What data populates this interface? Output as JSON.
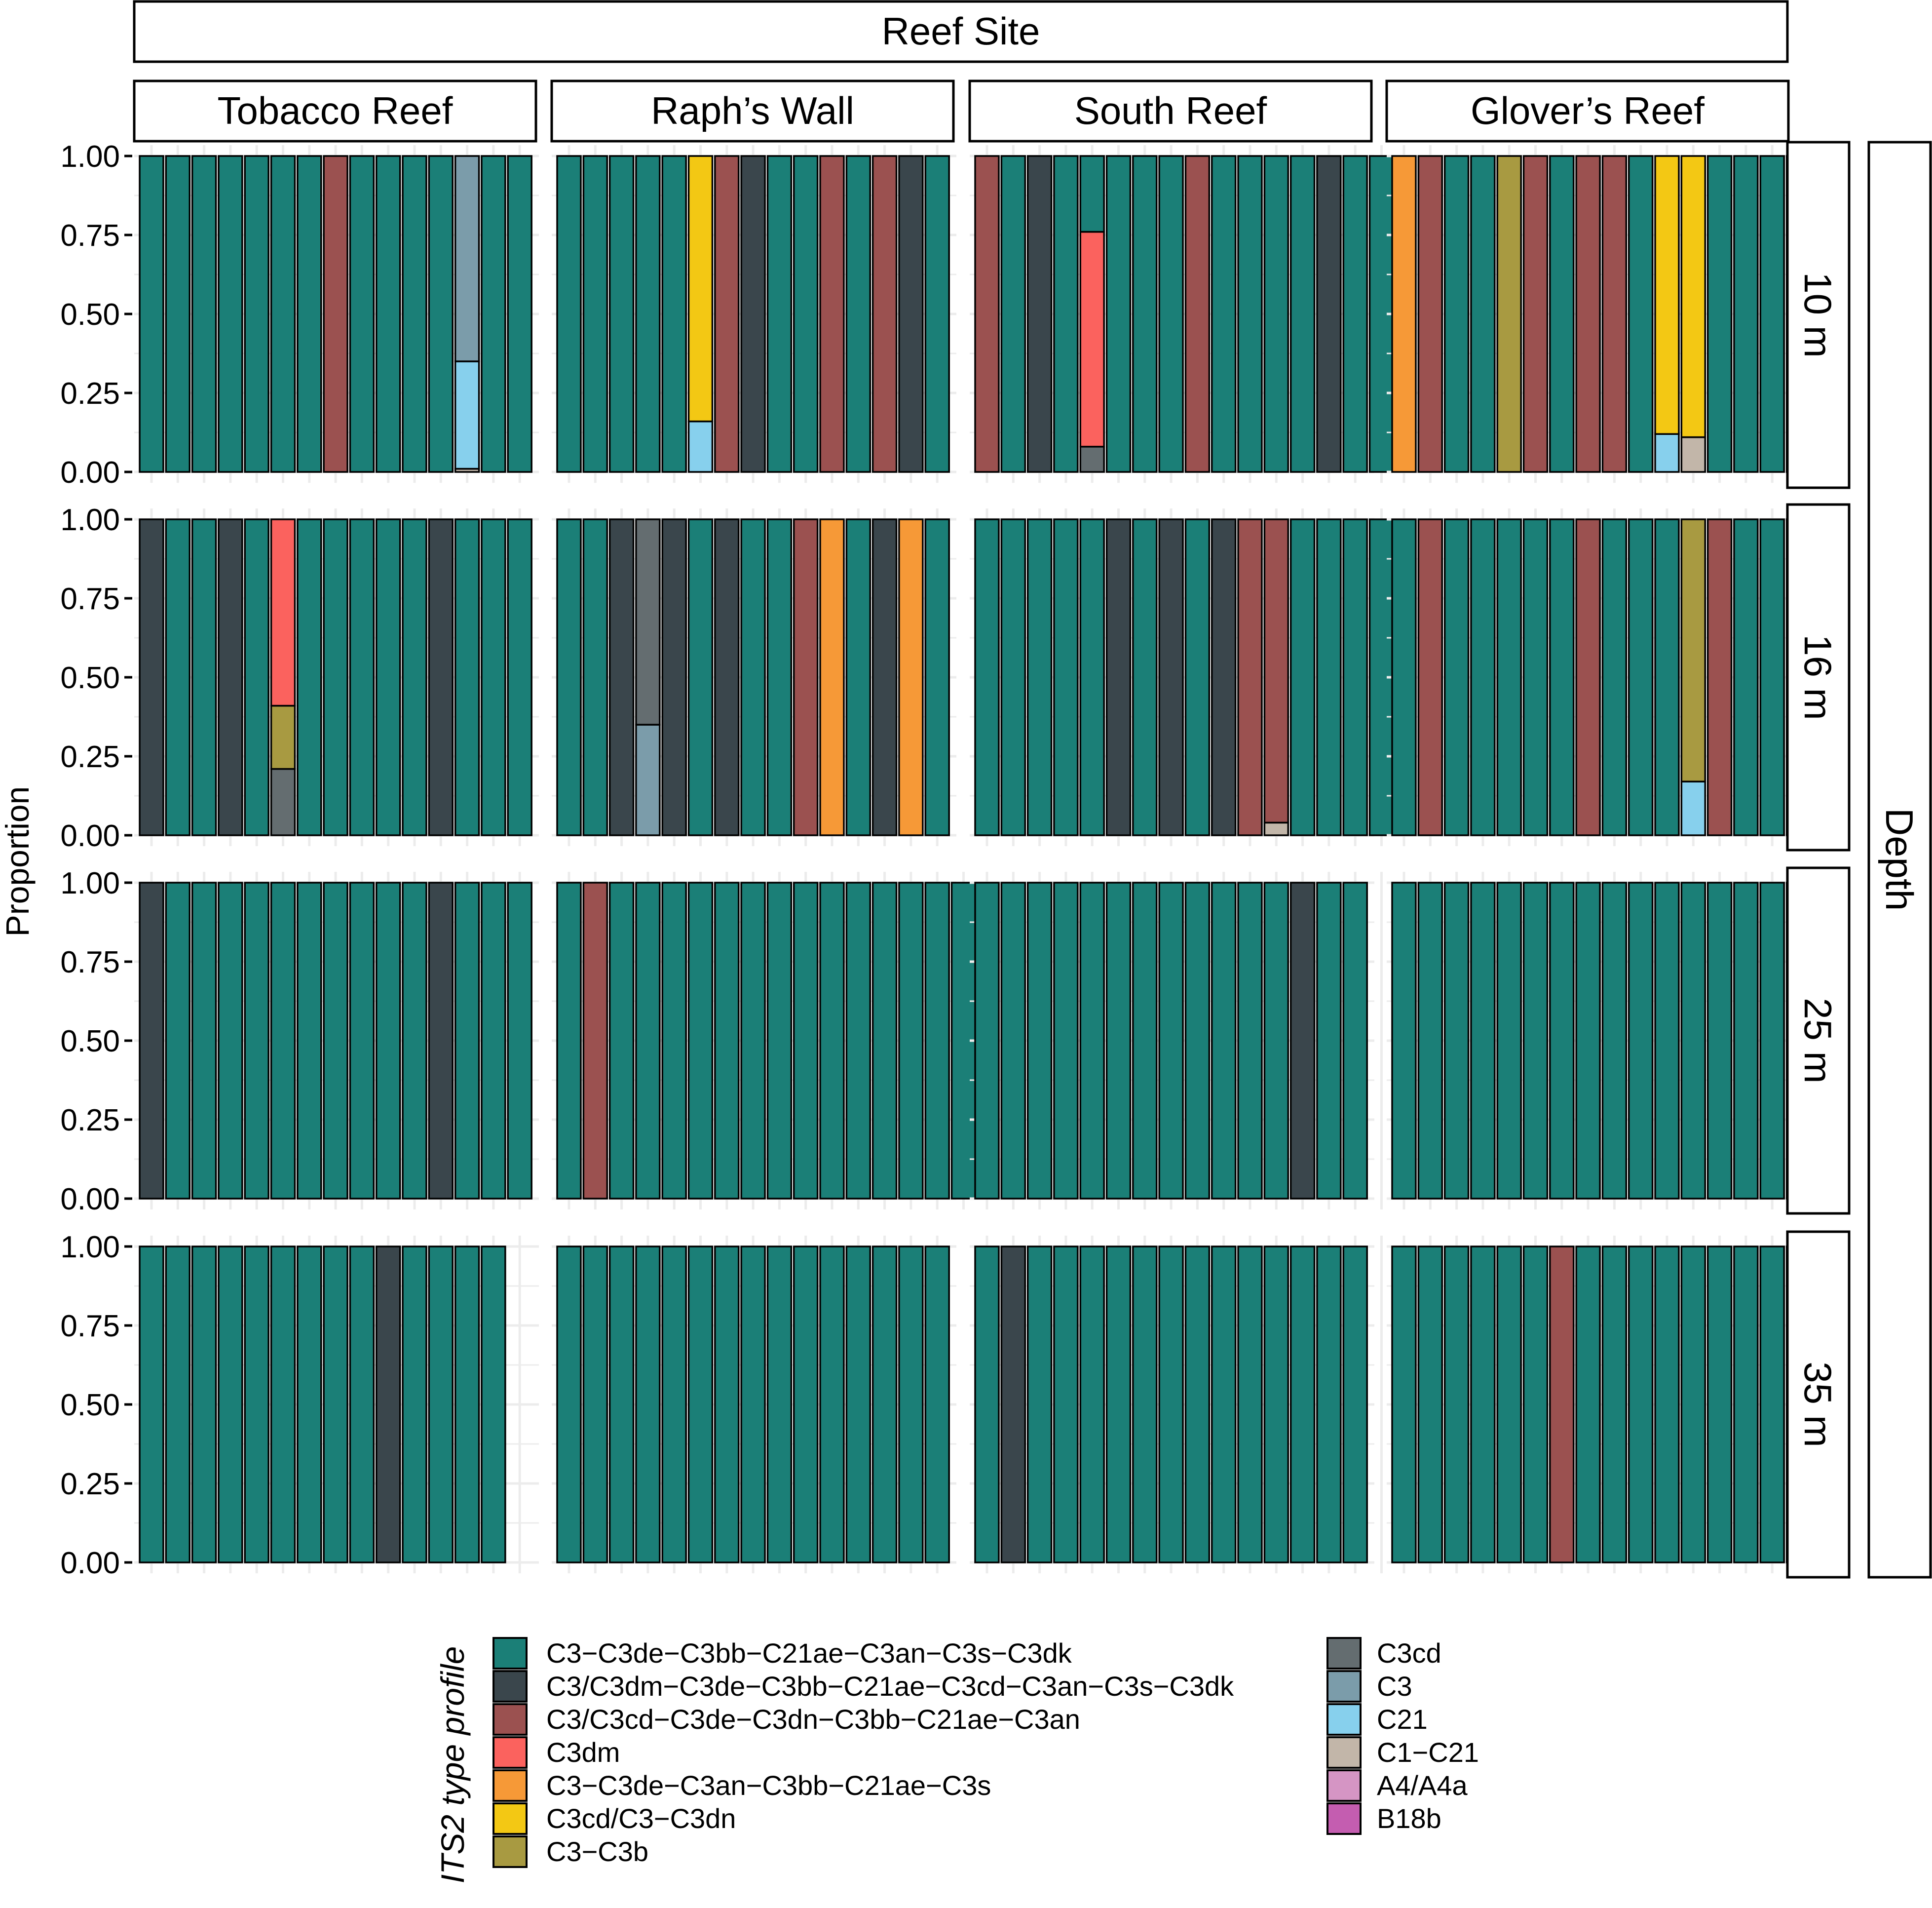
{
  "colors": {
    "p1": "#1b7f77",
    "p2": "#3a464c",
    "p3": "#9b5150",
    "p4": "#fb625e",
    "p5": "#f69937",
    "p6": "#f3c814",
    "p7": "#a89a41",
    "p8": "#646d70",
    "p9": "#7b9caa",
    "p10": "#87d0ed",
    "p11": "#c2b6a9",
    "p12": "#d595c4",
    "p13": "#c45db0",
    "grid": "#ececec",
    "bar_outline": "#000000"
  },
  "chart_data": {
    "type": "bar",
    "stacked": true,
    "y_title": "Proportion",
    "y_ticks": [
      "1.00",
      "0.75",
      "0.50",
      "0.25",
      "0.00"
    ],
    "ylim": [
      0,
      1
    ],
    "column_strip_title": "Reef Site",
    "row_strip_title": "Depth",
    "columns": [
      "Tobacco Reef",
      "Raph’s Wall",
      "South Reef",
      "Glover’s Reef"
    ],
    "rows": [
      "10 m",
      "16 m",
      "25 m",
      "35 m"
    ],
    "legend": {
      "title": "ITS2 type profile",
      "position": "bottom",
      "items": [
        {
          "key": "p1",
          "label": "C3−C3de−C3bb−C21ae−C3an−C3s−C3dk"
        },
        {
          "key": "p2",
          "label": "C3/C3dm−C3de−C3bb−C21ae−C3cd−C3an−C3s−C3dk"
        },
        {
          "key": "p3",
          "label": "C3/C3cd−C3de−C3dn−C3bb−C21ae−C3an"
        },
        {
          "key": "p4",
          "label": "C3dm"
        },
        {
          "key": "p5",
          "label": "C3−C3de−C3an−C3bb−C21ae−C3s"
        },
        {
          "key": "p6",
          "label": "C3cd/C3−C3dn"
        },
        {
          "key": "p7",
          "label": "C3−C3b"
        },
        {
          "key": "p8",
          "label": "C3cd"
        },
        {
          "key": "p9",
          "label": "C3"
        },
        {
          "key": "p10",
          "label": "C21"
        },
        {
          "key": "p11",
          "label": "C1−C21"
        },
        {
          "key": "p12",
          "label": "A4/A4a"
        },
        {
          "key": "p13",
          "label": "B18b"
        }
      ]
    },
    "panels": [
      [
        {
          "slots": 15,
          "samples": [
            [
              "p1"
            ],
            [
              "p1"
            ],
            [
              "p1"
            ],
            [
              "p1"
            ],
            [
              "p1"
            ],
            [
              "p1"
            ],
            [
              "p1"
            ],
            [
              "p3"
            ],
            [
              "p1"
            ],
            [
              "p1"
            ],
            [
              "p1"
            ],
            [
              "p1"
            ],
            [
              [
                "p11",
                0.01
              ],
              [
                "p10",
                0.34
              ],
              [
                "p9",
                0.65
              ]
            ],
            [
              "p1"
            ],
            [
              "p1"
            ]
          ]
        },
        {
          "slots": 15,
          "samples": [
            [
              "p1"
            ],
            [
              "p1"
            ],
            [
              "p1"
            ],
            [
              "p1"
            ],
            [
              "p1"
            ],
            [
              [
                "p10",
                0.16
              ],
              [
                "p6",
                0.84
              ]
            ],
            [
              "p3"
            ],
            [
              "p2"
            ],
            [
              "p1"
            ],
            [
              "p1"
            ],
            [
              "p3"
            ],
            [
              "p1"
            ],
            [
              "p3"
            ],
            [
              "p2"
            ],
            [
              "p1"
            ]
          ]
        },
        {
          "slots": 16,
          "samples": [
            [
              "p3"
            ],
            [
              "p1"
            ],
            [
              "p2"
            ],
            [
              "p1"
            ],
            [
              [
                "p8",
                0.08
              ],
              [
                "p4",
                0.68
              ],
              [
                "p1",
                0.24
              ]
            ],
            [
              "p1"
            ],
            [
              "p1"
            ],
            [
              "p1"
            ],
            [
              "p3"
            ],
            [
              "p1"
            ],
            [
              "p1"
            ],
            [
              "p1"
            ],
            [
              "p1"
            ],
            [
              "p2"
            ],
            [
              "p1"
            ],
            [
              "p1"
            ]
          ]
        },
        {
          "slots": 16,
          "samples": [
            [
              "p5"
            ],
            [
              "p3"
            ],
            [
              "p1"
            ],
            [
              "p1"
            ],
            [
              "p7"
            ],
            [
              "p3"
            ],
            [
              "p1"
            ],
            [
              "p3"
            ],
            [
              "p3"
            ],
            [
              "p1"
            ],
            [
              [
                "p10",
                0.12
              ],
              [
                "p6",
                0.88
              ]
            ],
            [
              [
                "p11",
                0.11
              ],
              [
                "p6",
                0.89
              ]
            ],
            [
              "p1"
            ],
            [
              "p1"
            ],
            [
              "p1"
            ],
            [
              "p1"
            ]
          ]
        }
      ],
      [
        {
          "slots": 15,
          "samples": [
            [
              "p2"
            ],
            [
              "p1"
            ],
            [
              "p1"
            ],
            [
              "p2"
            ],
            [
              "p1"
            ],
            [
              [
                "p8",
                0.21
              ],
              [
                "p7",
                0.2
              ],
              [
                "p4",
                0.59
              ]
            ],
            [
              "p1"
            ],
            [
              "p1"
            ],
            [
              "p1"
            ],
            [
              "p1"
            ],
            [
              "p1"
            ],
            [
              "p2"
            ],
            [
              "p1"
            ],
            [
              "p1"
            ],
            [
              "p1"
            ]
          ]
        },
        {
          "slots": 15,
          "samples": [
            [
              "p1"
            ],
            [
              "p1"
            ],
            [
              "p2"
            ],
            [
              [
                "p9",
                0.35
              ],
              [
                "p8",
                0.65
              ]
            ],
            [
              "p2"
            ],
            [
              "p1"
            ],
            [
              "p2"
            ],
            [
              "p1"
            ],
            [
              "p1"
            ],
            [
              "p3"
            ],
            [
              "p5"
            ],
            [
              "p1"
            ],
            [
              "p2"
            ],
            [
              "p5"
            ],
            [
              "p1"
            ]
          ]
        },
        {
          "slots": 16,
          "samples": [
            [
              "p1"
            ],
            [
              "p1"
            ],
            [
              "p1"
            ],
            [
              "p1"
            ],
            [
              "p1"
            ],
            [
              "p2"
            ],
            [
              "p1"
            ],
            [
              "p2"
            ],
            [
              "p1"
            ],
            [
              "p2"
            ],
            [
              "p3"
            ],
            [
              [
                "p11",
                0.04
              ],
              [
                "p3",
                0.96
              ]
            ],
            [
              "p1"
            ],
            [
              "p1"
            ],
            [
              "p1"
            ],
            [
              "p1"
            ]
          ]
        },
        {
          "slots": 16,
          "samples": [
            [
              "p1"
            ],
            [
              "p3"
            ],
            [
              "p1"
            ],
            [
              "p1"
            ],
            [
              "p1"
            ],
            [
              "p1"
            ],
            [
              "p1"
            ],
            [
              "p3"
            ],
            [
              "p1"
            ],
            [
              "p1"
            ],
            [
              "p1"
            ],
            [
              [
                "p10",
                0.17
              ],
              [
                "p7",
                0.83
              ]
            ],
            [
              "p3"
            ],
            [
              "p1"
            ],
            [
              "p1"
            ],
            [
              "p1"
            ]
          ]
        }
      ],
      [
        {
          "slots": 15,
          "samples": [
            [
              "p2"
            ],
            [
              "p1"
            ],
            [
              "p1"
            ],
            [
              "p1"
            ],
            [
              "p1"
            ],
            [
              "p1"
            ],
            [
              "p1"
            ],
            [
              "p1"
            ],
            [
              "p1"
            ],
            [
              "p1"
            ],
            [
              "p1"
            ],
            [
              "p2"
            ],
            [
              "p1"
            ],
            [
              "p1"
            ],
            [
              "p1"
            ]
          ]
        },
        {
          "slots": 16,
          "samples": [
            [
              "p1"
            ],
            [
              "p3"
            ],
            [
              "p1"
            ],
            [
              "p1"
            ],
            [
              "p1"
            ],
            [
              "p1"
            ],
            [
              "p1"
            ],
            [
              "p1"
            ],
            [
              "p1"
            ],
            [
              "p1"
            ],
            [
              "p1"
            ],
            [
              "p1"
            ],
            [
              "p1"
            ],
            [
              "p1"
            ],
            [
              "p1"
            ],
            [
              "p1"
            ]
          ]
        },
        {
          "slots": 16,
          "samples": [
            [
              "p1"
            ],
            [
              "p1"
            ],
            [
              "p1"
            ],
            [
              "p1"
            ],
            [
              "p1"
            ],
            [
              "p1"
            ],
            [
              "p1"
            ],
            [
              "p1"
            ],
            [
              "p1"
            ],
            [
              "p1"
            ],
            [
              "p1"
            ],
            [
              "p1"
            ],
            [
              "p2"
            ],
            [
              "p1"
            ],
            [
              "p1"
            ]
          ]
        },
        {
          "slots": 16,
          "samples": [
            [
              "p1"
            ],
            [
              "p1"
            ],
            [
              "p1"
            ],
            [
              "p1"
            ],
            [
              "p1"
            ],
            [
              "p1"
            ],
            [
              "p1"
            ],
            [
              "p1"
            ],
            [
              "p1"
            ],
            [
              "p1"
            ],
            [
              "p1"
            ],
            [
              "p1"
            ],
            [
              "p1"
            ],
            [
              "p1"
            ],
            [
              "p1"
            ],
            [
              "p1"
            ]
          ]
        }
      ],
      [
        {
          "slots": 15,
          "samples": [
            [
              "p1"
            ],
            [
              "p1"
            ],
            [
              "p1"
            ],
            [
              "p1"
            ],
            [
              "p1"
            ],
            [
              "p1"
            ],
            [
              "p1"
            ],
            [
              "p1"
            ],
            [
              "p1"
            ],
            [
              "p2"
            ],
            [
              "p1"
            ],
            [
              "p1"
            ],
            [
              "p1"
            ],
            [
              "p1"
            ]
          ]
        },
        {
          "slots": 15,
          "samples": [
            [
              "p1"
            ],
            [
              "p1"
            ],
            [
              "p1"
            ],
            [
              "p1"
            ],
            [
              "p1"
            ],
            [
              "p1"
            ],
            [
              "p1"
            ],
            [
              "p1"
            ],
            [
              "p1"
            ],
            [
              "p1"
            ],
            [
              "p1"
            ],
            [
              "p1"
            ],
            [
              "p1"
            ],
            [
              "p1"
            ],
            [
              "p1"
            ]
          ]
        },
        {
          "slots": 16,
          "samples": [
            [
              "p1"
            ],
            [
              "p2"
            ],
            [
              "p1"
            ],
            [
              "p1"
            ],
            [
              "p1"
            ],
            [
              "p1"
            ],
            [
              "p1"
            ],
            [
              "p1"
            ],
            [
              "p1"
            ],
            [
              "p1"
            ],
            [
              "p1"
            ],
            [
              "p1"
            ],
            [
              "p1"
            ],
            [
              "p1"
            ],
            [
              "p1"
            ]
          ]
        },
        {
          "slots": 16,
          "samples": [
            [
              "p1"
            ],
            [
              "p1"
            ],
            [
              "p1"
            ],
            [
              "p1"
            ],
            [
              "p1"
            ],
            [
              "p1"
            ],
            [
              "p3"
            ],
            [
              "p1"
            ],
            [
              "p1"
            ],
            [
              "p1"
            ],
            [
              "p1"
            ],
            [
              "p1"
            ],
            [
              "p1"
            ],
            [
              "p1"
            ],
            [
              "p1"
            ],
            [
              "p1"
            ]
          ]
        }
      ]
    ]
  }
}
